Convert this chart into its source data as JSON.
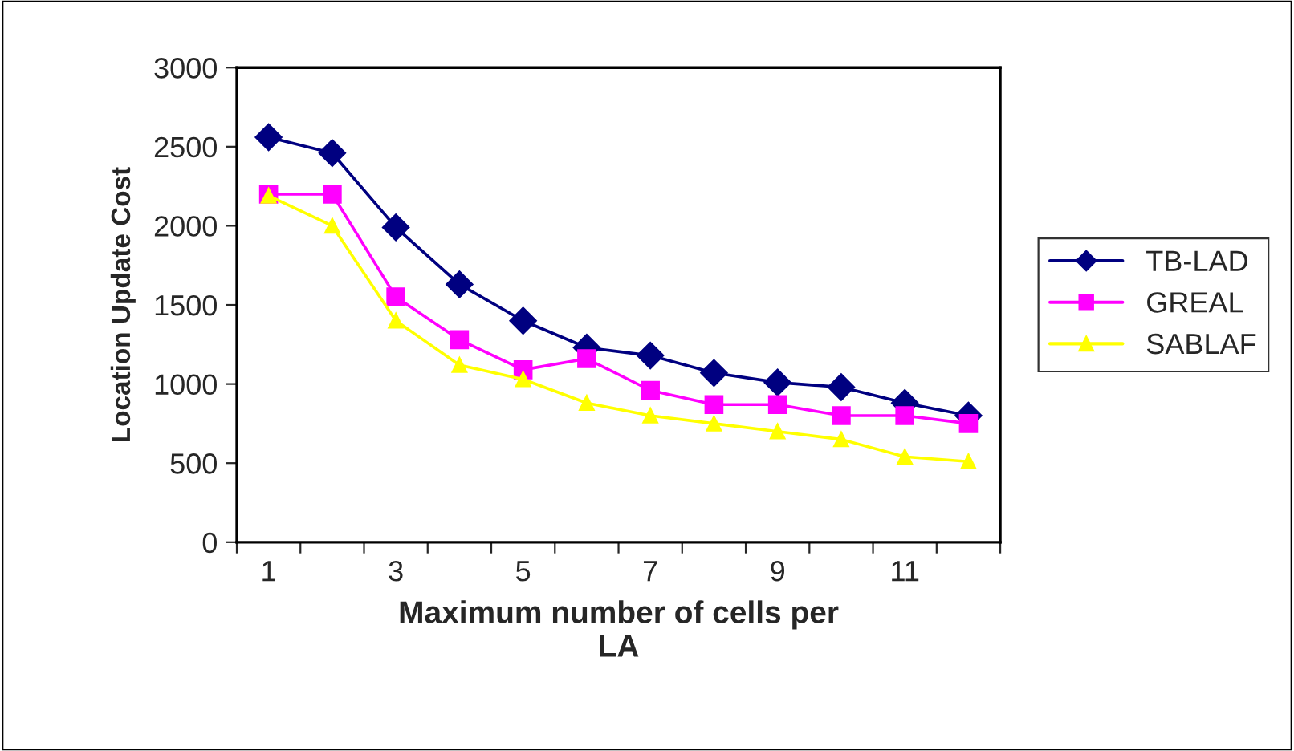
{
  "chart_data": {
    "type": "line",
    "xlabel": "Maximum number of cells per\nLA",
    "ylabel": "Location Update Cost",
    "categories": [
      "1",
      null,
      "3",
      null,
      "5",
      null,
      "7",
      null,
      "9",
      null,
      "11",
      null
    ],
    "series": [
      {
        "name": "TB-LAD",
        "color": "#000080",
        "marker": "diamond",
        "values": [
          2560,
          2460,
          1990,
          1630,
          1400,
          1230,
          1180,
          1070,
          1010,
          980,
          880,
          800
        ]
      },
      {
        "name": "GREAL",
        "color": "#ff00ff",
        "marker": "square",
        "values": [
          2200,
          2200,
          1550,
          1280,
          1090,
          1160,
          960,
          870,
          870,
          800,
          800,
          750
        ]
      },
      {
        "name": "SABLAF",
        "color": "#ffff00",
        "marker": "triangle",
        "values": [
          2190,
          2000,
          1400,
          1120,
          1030,
          880,
          800,
          750,
          700,
          650,
          540,
          510
        ]
      }
    ],
    "ylim": [
      0,
      3000
    ],
    "yticks": [
      0,
      500,
      1000,
      1500,
      2000,
      2500,
      3000
    ],
    "grid": false,
    "legend": "right",
    "line_style": "solid"
  }
}
